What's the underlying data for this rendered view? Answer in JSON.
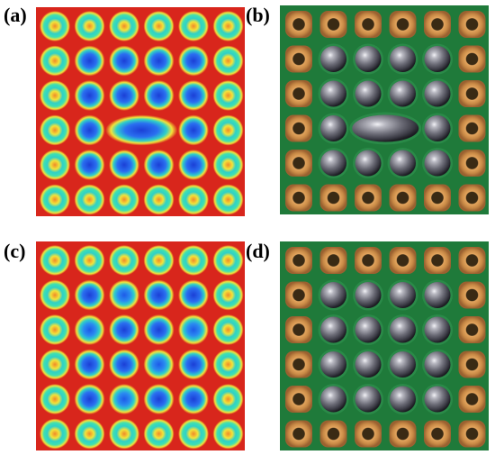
{
  "labels": {
    "a": "(a)",
    "b": "(b)",
    "c": "(c)",
    "d": "(d)"
  },
  "panels": {
    "a": {
      "kind": "thermal-map",
      "description_ref": "panel-a",
      "grid": [
        6,
        6
      ],
      "merged_blob_at": "row4-center"
    },
    "b": {
      "kind": "photo-solder-balls",
      "grid": [
        6,
        6
      ],
      "balls_region": "inner-4x4",
      "merged_ball_at": "row4-center"
    },
    "c": {
      "kind": "thermal-map",
      "grid": [
        6,
        6
      ]
    },
    "d": {
      "kind": "photo-solder-balls",
      "grid": [
        6,
        6
      ],
      "balls_region": "inner-4x4"
    }
  },
  "colors": {
    "thermal_background": "#d8261c",
    "thermal_cold": "#1b3fd6",
    "thermal_mid": "#2fd0c8",
    "thermal_warm": "#f2e33a",
    "pcb_green": "#1f7a3a",
    "pad_copper": "#c98a46",
    "pad_hole": "#3a2a14",
    "solder_ball": "#8c8c95"
  }
}
